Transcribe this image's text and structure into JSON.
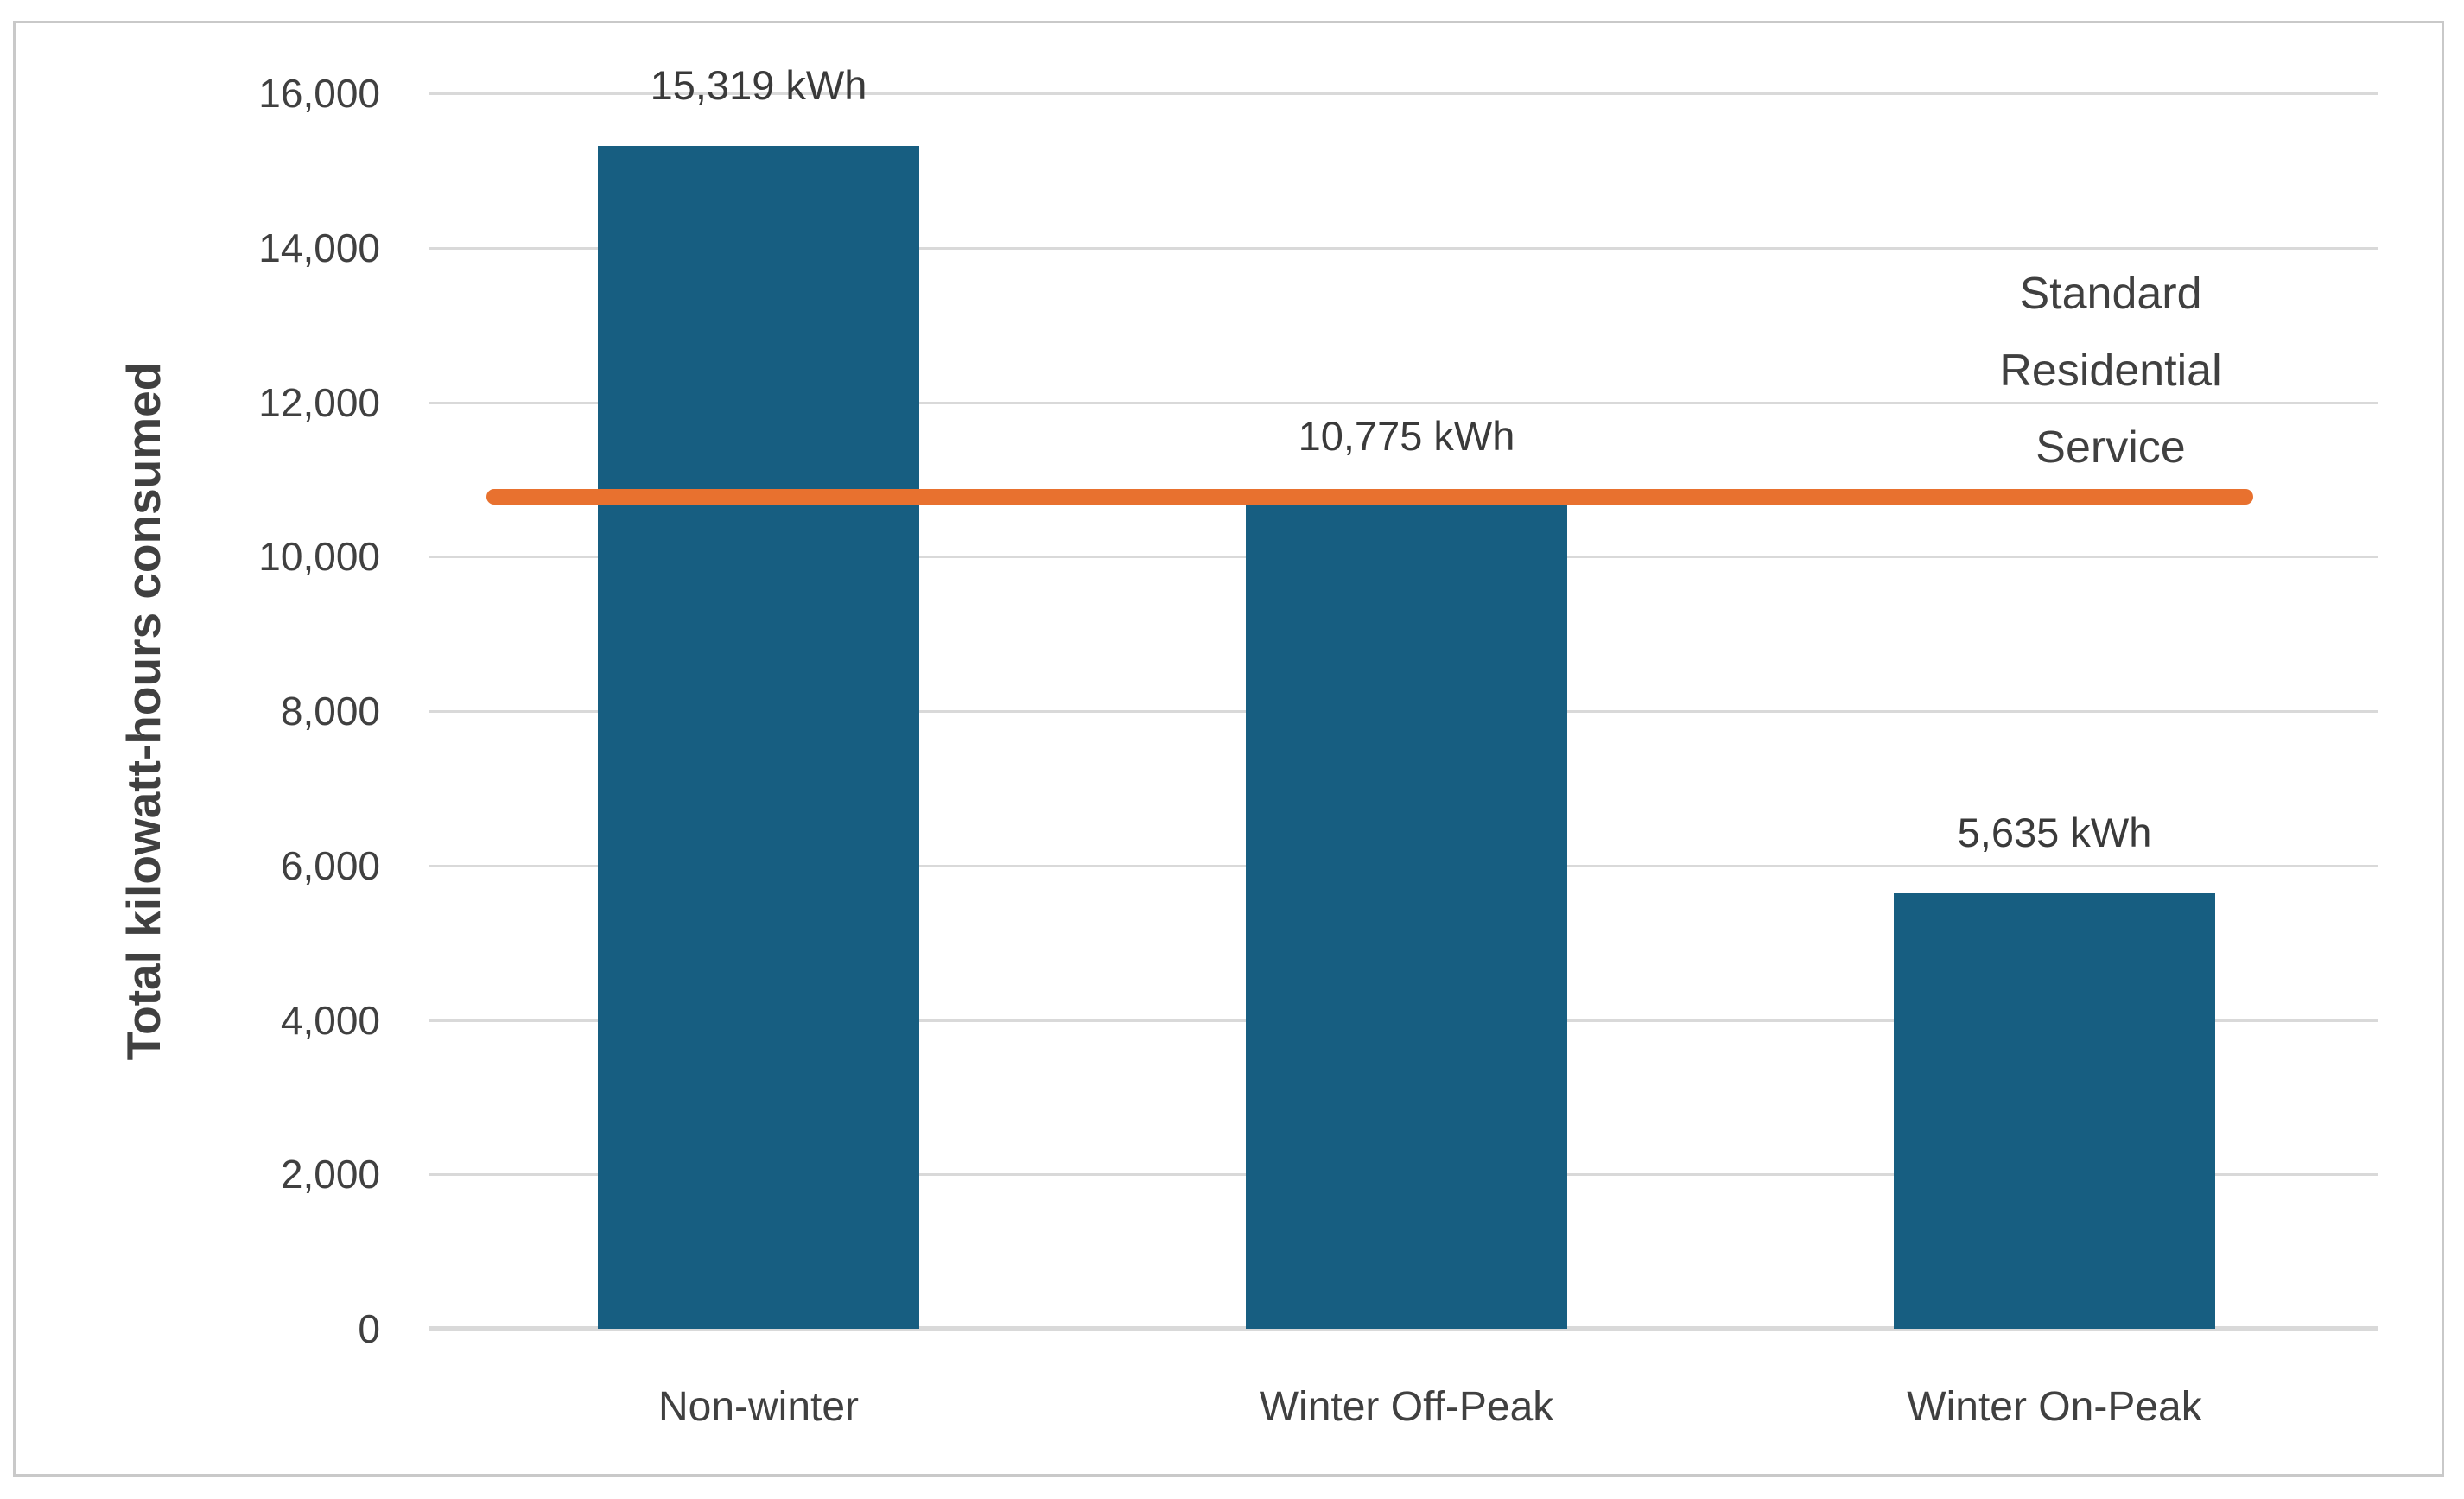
{
  "chart_data": {
    "type": "bar",
    "title": "",
    "xlabel": "",
    "ylabel": "Total kilowatt-hours consumed",
    "categories": [
      "Non-winter",
      "Winter Off-Peak",
      "Winter On-Peak"
    ],
    "values": [
      15319,
      10775,
      5635
    ],
    "bar_labels": [
      "15,319 kWh",
      "10,775 kWh",
      "5,635 kWh"
    ],
    "ylim": [
      0,
      16000
    ],
    "ytick_interval": 2000,
    "yticks": [
      {
        "value": 0,
        "label": "0"
      },
      {
        "value": 2000,
        "label": "2,000"
      },
      {
        "value": 4000,
        "label": "4,000"
      },
      {
        "value": 6000,
        "label": "6,000"
      },
      {
        "value": 8000,
        "label": "8,000"
      },
      {
        "value": 10000,
        "label": "10,000"
      },
      {
        "value": 12000,
        "label": "12,000"
      },
      {
        "value": 14000,
        "label": "14,000"
      },
      {
        "value": 16000,
        "label": "16,000"
      }
    ],
    "grid": true,
    "legend_position": "none",
    "reference_line": {
      "value": 10775,
      "label": "Standard Residential Service",
      "label_lines": [
        "Standard",
        "Residential",
        "Service"
      ],
      "color": "#E8712F"
    },
    "colors": {
      "bar": "#175E81",
      "reference_line": "#E8712F",
      "gridline": "#D9D9D9",
      "axis_line": "#D9D9D9",
      "text": "#404040",
      "frame_border": "#C9C9C9"
    }
  }
}
